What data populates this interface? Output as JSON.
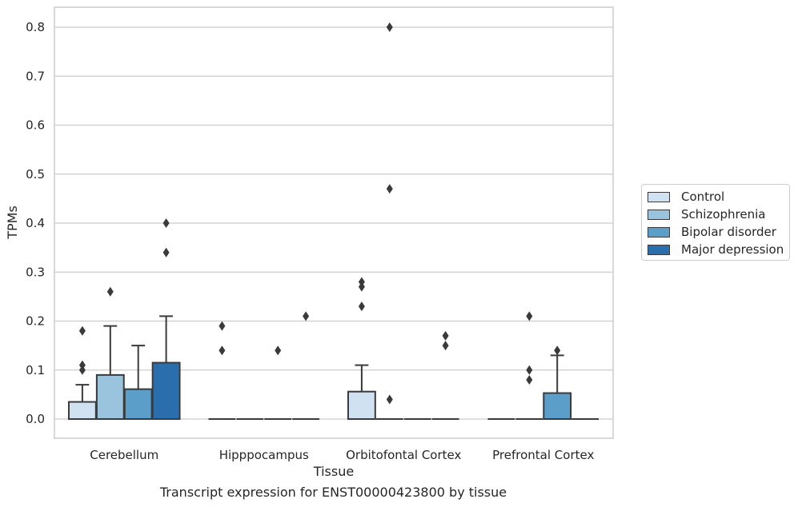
{
  "caption": "Transcript expression for ENST00000423800 by tissue",
  "chart_data": {
    "type": "box",
    "xlabel": "Tissue",
    "ylabel": "TPMs",
    "ylim": [
      -0.04,
      0.84
    ],
    "yticks": [
      0.0,
      0.1,
      0.2,
      0.3,
      0.4,
      0.5,
      0.6,
      0.7,
      0.8
    ],
    "ytick_labels": [
      "0.0",
      "0.1",
      "0.2",
      "0.3",
      "0.4",
      "0.5",
      "0.6",
      "0.7",
      "0.8"
    ],
    "grid": "horizontal",
    "legend_position": "right",
    "categories": [
      "Cerebellum",
      "Hipppocampus",
      "Orbitofontal Cortex",
      "Prefrontal Cortex"
    ],
    "series": [
      {
        "name": "Control",
        "color": "#d0e2f2",
        "boxes": [
          {
            "q1": 0.0,
            "median": 0.0,
            "q3": 0.035,
            "whisker_low": 0.0,
            "whisker_high": 0.07,
            "outliers": [
              0.1,
              0.11,
              0.18
            ]
          },
          {
            "q1": 0.0,
            "median": 0.0,
            "q3": 0.0,
            "whisker_low": 0.0,
            "whisker_high": 0.0,
            "outliers": [
              0.14,
              0.19
            ]
          },
          {
            "q1": 0.0,
            "median": 0.0,
            "q3": 0.056,
            "whisker_low": 0.0,
            "whisker_high": 0.11,
            "outliers": [
              0.23,
              0.27,
              0.28
            ]
          },
          {
            "q1": 0.0,
            "median": 0.0,
            "q3": 0.0,
            "whisker_low": 0.0,
            "whisker_high": 0.0,
            "outliers": []
          }
        ]
      },
      {
        "name": "Schizophrenia",
        "color": "#9ac3dd",
        "boxes": [
          {
            "q1": 0.0,
            "median": 0.0,
            "q3": 0.09,
            "whisker_low": 0.0,
            "whisker_high": 0.19,
            "outliers": [
              0.26
            ]
          },
          {
            "q1": 0.0,
            "median": 0.0,
            "q3": 0.0,
            "whisker_low": 0.0,
            "whisker_high": 0.0,
            "outliers": []
          },
          {
            "q1": 0.0,
            "median": 0.0,
            "q3": 0.0,
            "whisker_low": 0.0,
            "whisker_high": 0.0,
            "outliers": [
              0.04,
              0.47,
              0.8
            ]
          },
          {
            "q1": 0.0,
            "median": 0.0,
            "q3": 0.0,
            "whisker_low": 0.0,
            "whisker_high": 0.0,
            "outliers": [
              0.08,
              0.1,
              0.21
            ]
          }
        ]
      },
      {
        "name": "Bipolar disorder",
        "color": "#5a9ec9",
        "boxes": [
          {
            "q1": 0.0,
            "median": 0.0,
            "q3": 0.061,
            "whisker_low": 0.0,
            "whisker_high": 0.15,
            "outliers": []
          },
          {
            "q1": 0.0,
            "median": 0.0,
            "q3": 0.0,
            "whisker_low": 0.0,
            "whisker_high": 0.0,
            "outliers": [
              0.14
            ]
          },
          {
            "q1": 0.0,
            "median": 0.0,
            "q3": 0.0,
            "whisker_low": 0.0,
            "whisker_high": 0.0,
            "outliers": []
          },
          {
            "q1": 0.0,
            "median": 0.0,
            "q3": 0.053,
            "whisker_low": 0.0,
            "whisker_high": 0.13,
            "outliers": [
              0.14
            ]
          }
        ]
      },
      {
        "name": "Major depression",
        "color": "#2a6eae",
        "boxes": [
          {
            "q1": 0.0,
            "median": 0.0,
            "q3": 0.115,
            "whisker_low": 0.0,
            "whisker_high": 0.21,
            "outliers": [
              0.34,
              0.4
            ]
          },
          {
            "q1": 0.0,
            "median": 0.0,
            "q3": 0.0,
            "whisker_low": 0.0,
            "whisker_high": 0.0,
            "outliers": [
              0.21
            ]
          },
          {
            "q1": 0.0,
            "median": 0.0,
            "q3": 0.0,
            "whisker_low": 0.0,
            "whisker_high": 0.0,
            "outliers": [
              0.15,
              0.17
            ]
          },
          {
            "q1": 0.0,
            "median": 0.0,
            "q3": 0.0,
            "whisker_low": 0.0,
            "whisker_high": 0.0,
            "outliers": []
          }
        ]
      }
    ]
  }
}
